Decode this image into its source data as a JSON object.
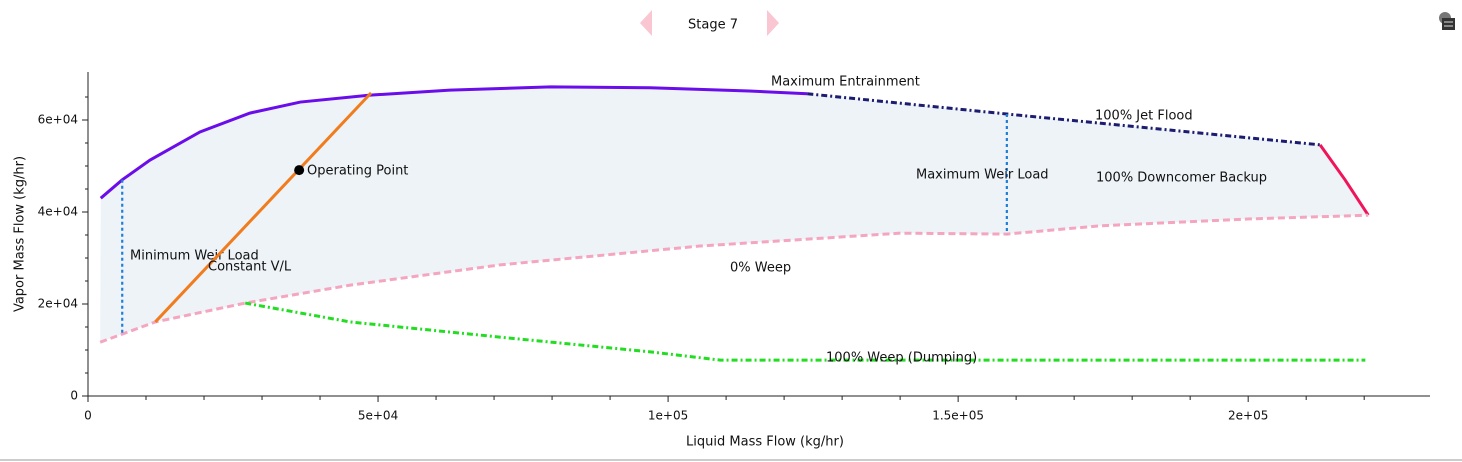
{
  "chart_data": {
    "type": "line",
    "title": "Stage 7",
    "x_label": "Liquid Mass Flow (kg/hr)",
    "y_label": "Vapor Mass Flow (kg/hr)",
    "xlim": [
      0,
      231000
    ],
    "ylim": [
      0,
      70000
    ],
    "xticks": [
      0,
      {
        "value": 50000,
        "label": "5e+04"
      },
      {
        "value": 100000,
        "label": "1e+05"
      },
      {
        "value": 150000,
        "label": "1.5e+05"
      },
      {
        "value": 200000,
        "label": "2e+05"
      }
    ],
    "yticks": [
      0,
      {
        "value": 20000,
        "label": "2e+04"
      },
      {
        "value": 40000,
        "label": "4e+04"
      },
      {
        "value": 60000,
        "label": "6e+04"
      }
    ],
    "xminorticks": [
      10000,
      20000,
      30000,
      40000,
      60000,
      70000,
      80000,
      90000,
      110000,
      120000,
      130000,
      140000,
      160000,
      170000,
      180000,
      190000,
      210000,
      220000
    ],
    "yminorticks": [
      5000,
      10000,
      15000,
      25000,
      30000,
      35000,
      45000,
      50000,
      55000,
      65000
    ],
    "series": [
      {
        "name": "Maximum Entrainment",
        "color": "#6a0dea",
        "style": "solid",
        "x": [
          2200,
          5900,
          10700,
          19300,
          27900,
          36600,
          48600,
          62400,
          79700,
          96900,
          114000,
          124000
        ],
        "values": [
          43000,
          47000,
          51300,
          57400,
          61500,
          63900,
          65400,
          66500,
          67200,
          67000,
          66300,
          65700
        ]
      },
      {
        "name": "100% Jet Flood",
        "color": "#1c1c70",
        "style": "dashdot",
        "x": [
          124000,
          158400,
          212400
        ],
        "values": [
          65700,
          61300,
          54600
        ]
      },
      {
        "name": "100% Downcomer Backup",
        "color": "#f0145a",
        "style": "solid",
        "x": [
          212400,
          216700,
          220700
        ],
        "values": [
          54600,
          47000,
          39300
        ]
      },
      {
        "name": "0% Weep",
        "color": "#f4a6bf",
        "style": "dashed",
        "x": [
          2100,
          11600,
          27100,
          45200,
          71000,
          105500,
          140000,
          158400,
          174500,
          200300,
          220700
        ],
        "values": [
          11700,
          16100,
          20200,
          24100,
          28500,
          32600,
          35400,
          35200,
          37000,
          38500,
          39300
        ]
      },
      {
        "name": "100% Weep (Dumping)",
        "color": "#22dd22",
        "style": "dashdot",
        "x": [
          27100,
          45200,
          71000,
          96900,
          109000,
          220200
        ],
        "values": [
          20200,
          16100,
          12800,
          9600,
          7800,
          7800
        ]
      },
      {
        "name": "Minimum Weir Load",
        "color": "#1e7fd8",
        "style": "dotted",
        "x": [
          5900,
          5900
        ],
        "values": [
          47000,
          13700
        ]
      },
      {
        "name": "Maximum Weir Load",
        "color": "#1e7fd8",
        "style": "dotted",
        "x": [
          158400,
          158400
        ],
        "values": [
          61300,
          35200
        ]
      },
      {
        "name": "Constant V/L",
        "color": "#f07c1e",
        "style": "solid",
        "x": [
          11600,
          48800
        ],
        "values": [
          16100,
          65900
        ]
      },
      {
        "name": "Operating Point",
        "color": "#000000",
        "style": "point",
        "x": [
          36400
        ],
        "values": [
          49100
        ]
      }
    ],
    "region_color": "#eef3f8"
  }
}
